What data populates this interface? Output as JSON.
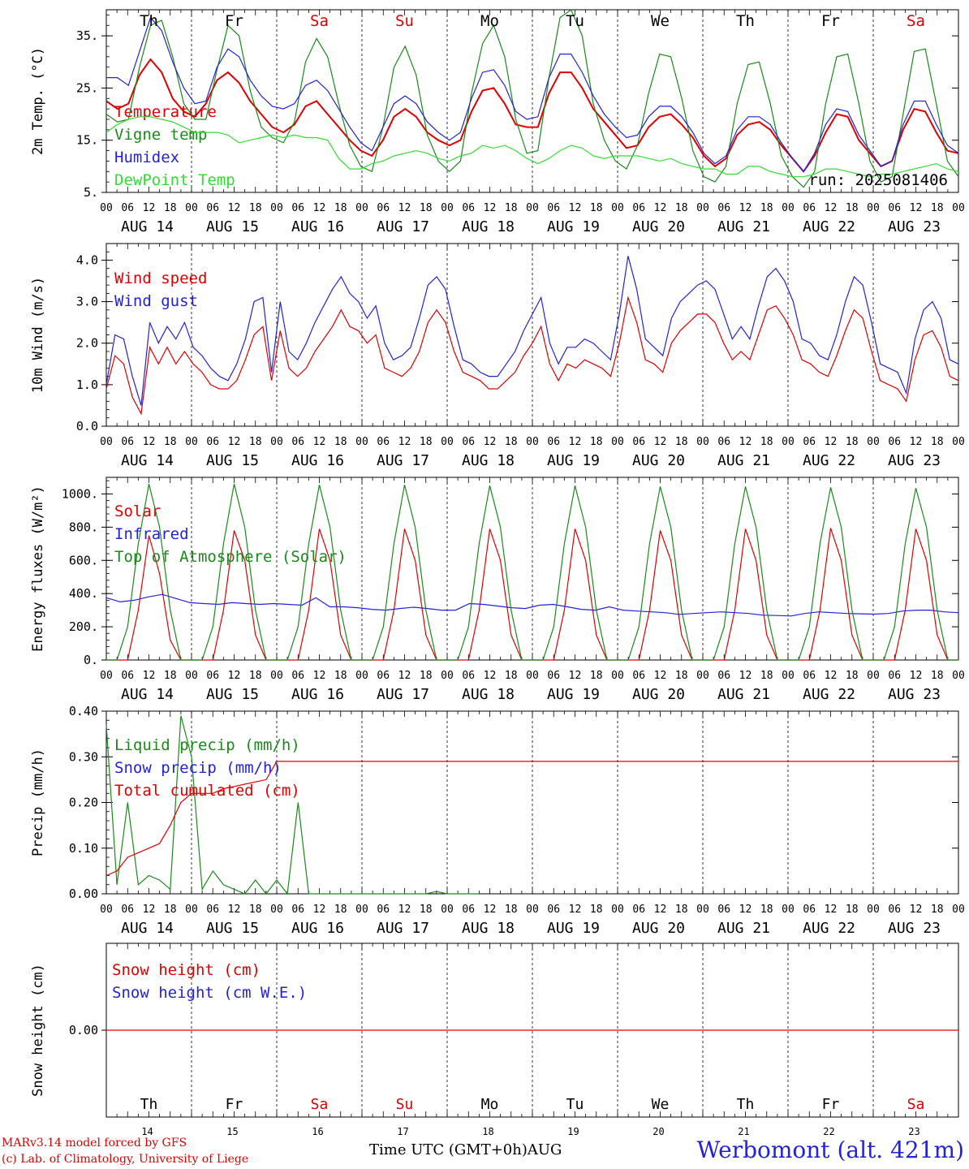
{
  "footer": {
    "credit_line1": "MARv3.14 model forced by GFS",
    "credit_line2": "(c) Lab. of Climatology, University of Liege",
    "xaxis_title": "Time UTC (GMT+0h)AUG",
    "station": "Werbomont (alt. 421m)"
  },
  "run_label": "run: 2025081406",
  "colors": {
    "red": "#e00000",
    "blue": "#2222dd",
    "green": "#1a8a1a",
    "lightgreen": "#33dd33",
    "weekend": "#e00000",
    "weekday": "#000000"
  },
  "days": [
    {
      "abbr": "Th",
      "date": "AUG 14",
      "num": "14",
      "weekend": false
    },
    {
      "abbr": "Fr",
      "date": "AUG 15",
      "num": "15",
      "weekend": false
    },
    {
      "abbr": "Sa",
      "date": "AUG 16",
      "num": "16",
      "weekend": true
    },
    {
      "abbr": "Su",
      "date": "AUG 17",
      "num": "17",
      "weekend": true
    },
    {
      "abbr": "Mo",
      "date": "AUG 18",
      "num": "18",
      "weekend": false
    },
    {
      "abbr": "Tu",
      "date": "AUG 19",
      "num": "19",
      "weekend": false
    },
    {
      "abbr": "We",
      "date": "AUG 20",
      "num": "20",
      "weekend": false
    },
    {
      "abbr": "Th",
      "date": "AUG 21",
      "num": "21",
      "weekend": false
    },
    {
      "abbr": "Fr",
      "date": "AUG 22",
      "num": "22",
      "weekend": false
    },
    {
      "abbr": "Sa",
      "date": "AUG 23",
      "num": "23",
      "weekend": true
    }
  ],
  "hour_ticks": [
    "00",
    "06",
    "12",
    "18"
  ],
  "chart_data": [
    {
      "type": "line",
      "ylabel": "2m Temp. (°C)",
      "ylim": [
        5,
        40
      ],
      "yticks": [
        "5.",
        "15.",
        "25.",
        "35."
      ],
      "ytick_values": [
        5,
        15,
        25,
        35
      ],
      "series": [
        {
          "name": "Temperature",
          "color": "#e00000",
          "values": [
            22.5,
            21,
            22,
            27.5,
            30.5,
            28,
            23,
            20.5,
            19.5,
            22,
            26.5,
            28,
            26,
            22.5,
            20,
            17.5,
            16.5,
            18,
            21.5,
            22.5,
            20,
            17.5,
            15,
            13,
            12,
            15,
            19.5,
            21,
            19.5,
            16.5,
            15,
            14,
            15,
            20.5,
            24.5,
            25,
            22,
            18,
            17.5,
            17.5,
            24,
            28,
            28,
            25,
            21,
            18.5,
            16,
            13.5,
            14,
            17.5,
            19.5,
            20,
            18,
            15.5,
            12,
            10,
            11.5,
            16,
            18,
            18.5,
            17,
            14,
            11.5,
            9,
            12,
            16.5,
            20,
            19.5,
            15,
            12.5,
            10,
            11,
            17,
            21,
            20.5,
            16.5,
            13,
            12.5
          ]
        },
        {
          "name": "Vigne temp",
          "color": "#1a8a1a",
          "values": [
            20,
            18.5,
            19,
            29,
            37,
            38,
            31,
            22,
            19,
            19,
            28.5,
            37,
            35,
            24.5,
            17.5,
            15.5,
            14.5,
            18.5,
            30,
            34.5,
            31,
            22,
            14,
            10,
            9,
            17.5,
            29,
            33,
            27.5,
            16,
            11,
            9,
            11,
            24,
            33.5,
            37,
            31,
            19,
            12.5,
            13,
            27,
            38.5,
            40,
            35,
            22,
            15,
            11,
            9.5,
            14,
            24,
            31.5,
            31,
            23,
            13,
            8,
            7,
            10,
            22,
            29.5,
            30,
            22,
            12,
            8,
            6,
            9,
            22,
            31,
            31.5,
            22,
            11,
            7,
            8,
            20,
            32,
            32.5,
            22,
            11,
            8
          ]
        },
        {
          "name": "Humidex",
          "color": "#2222dd",
          "values": [
            27,
            27,
            25.5,
            32,
            38.5,
            36,
            30,
            25,
            22,
            22.5,
            29,
            32.5,
            31,
            26.5,
            23.5,
            21.5,
            21,
            22,
            25.5,
            26.5,
            24.5,
            21,
            17.5,
            14.5,
            13,
            17.5,
            22,
            23.5,
            22,
            18.5,
            16.5,
            15,
            16.5,
            23,
            28,
            28.5,
            25.5,
            20.5,
            19,
            19.5,
            27,
            31.5,
            31.5,
            28,
            23.5,
            20,
            17.5,
            15.5,
            16,
            19.5,
            21.5,
            21.5,
            19.5,
            16.5,
            12.5,
            10.5,
            12,
            17,
            19.5,
            19.5,
            18,
            14.5,
            11.5,
            9,
            12.5,
            18,
            21,
            20.5,
            16,
            13,
            10,
            11,
            18,
            22.5,
            22.5,
            18,
            14,
            12.5
          ]
        },
        {
          "name": "DewPoint Temp",
          "color": "#33dd33",
          "values": [
            16.5,
            18,
            19,
            19.5,
            19.5,
            19,
            18.5,
            17.5,
            16.5,
            16.5,
            16.5,
            16,
            14.5,
            15,
            15.5,
            16,
            15.5,
            16,
            15.5,
            15.5,
            15,
            11.5,
            9.5,
            9.5,
            10.5,
            11,
            12,
            12.5,
            13,
            12.5,
            11.5,
            11,
            12,
            12.5,
            14,
            13.5,
            14,
            13,
            11.5,
            10.5,
            11.5,
            13,
            14,
            13.5,
            12,
            11.5,
            12,
            12,
            12,
            11.5,
            11,
            11.5,
            10.5,
            10,
            9.5,
            9.5,
            8.5,
            8.5,
            10,
            10,
            9,
            8.5,
            8,
            8,
            8.5,
            9.5,
            9.5,
            9,
            8.5,
            8,
            8.5,
            8.5,
            9,
            9.5,
            10,
            10.5,
            9.5,
            9
          ]
        }
      ]
    },
    {
      "type": "line",
      "ylabel": "10m Wind (m/s)",
      "ylim": [
        0,
        4.4
      ],
      "yticks": [
        "0.0",
        "1.0",
        "2.0",
        "3.0",
        "4.0"
      ],
      "ytick_values": [
        0,
        1,
        2,
        3,
        4
      ],
      "series": [
        {
          "name": "Wind speed",
          "color": "#e00000",
          "values": [
            0.9,
            1.7,
            1.5,
            0.7,
            0.3,
            1.9,
            1.5,
            1.9,
            1.5,
            1.8,
            1.5,
            1.3,
            1.0,
            0.9,
            0.9,
            1.1,
            1.6,
            2.2,
            2.4,
            1.1,
            2.3,
            1.4,
            1.2,
            1.4,
            1.8,
            2.1,
            2.4,
            2.8,
            2.4,
            2.3,
            2.0,
            2.2,
            1.4,
            1.3,
            1.2,
            1.4,
            1.8,
            2.5,
            2.8,
            2.5,
            1.8,
            1.3,
            1.2,
            1.1,
            0.9,
            0.9,
            1.1,
            1.3,
            1.7,
            2.0,
            2.4,
            1.5,
            1.1,
            1.5,
            1.4,
            1.6,
            1.5,
            1.4,
            1.2,
            2.0,
            3.1,
            2.5,
            1.6,
            1.5,
            1.3,
            2.0,
            2.3,
            2.5,
            2.7,
            2.7,
            2.5,
            2.0,
            1.6,
            1.8,
            1.6,
            2.2,
            2.8,
            2.9,
            2.6,
            2.2,
            1.6,
            1.5,
            1.3,
            1.2,
            1.7,
            2.3,
            2.8,
            2.6,
            1.8,
            1.1,
            1.0,
            0.9,
            0.6,
            1.6,
            2.2,
            2.3,
            1.9,
            1.2,
            1.1
          ]
        },
        {
          "name": "Wind gust",
          "color": "#2222dd",
          "values": [
            1.0,
            2.2,
            2.1,
            1.2,
            0.5,
            2.5,
            2.0,
            2.4,
            2.1,
            2.5,
            1.9,
            1.7,
            1.4,
            1.2,
            1.1,
            1.5,
            2.1,
            3.0,
            3.1,
            1.3,
            3.0,
            1.8,
            1.6,
            2.0,
            2.5,
            2.9,
            3.3,
            3.6,
            3.2,
            3.0,
            2.6,
            2.9,
            2.0,
            1.6,
            1.7,
            1.9,
            2.6,
            3.4,
            3.6,
            3.3,
            2.4,
            1.6,
            1.5,
            1.3,
            1.2,
            1.2,
            1.5,
            1.8,
            2.3,
            2.7,
            3.1,
            2.0,
            1.5,
            1.9,
            1.9,
            2.1,
            2.0,
            1.8,
            1.6,
            2.7,
            4.1,
            3.3,
            2.1,
            1.9,
            1.7,
            2.6,
            3.0,
            3.2,
            3.4,
            3.5,
            3.3,
            2.7,
            2.1,
            2.4,
            2.1,
            2.9,
            3.6,
            3.8,
            3.5,
            3.0,
            2.1,
            2.0,
            1.7,
            1.6,
            2.2,
            3.0,
            3.6,
            3.4,
            2.5,
            1.5,
            1.4,
            1.3,
            0.8,
            2.1,
            2.8,
            3.0,
            2.6,
            1.6,
            1.5
          ]
        }
      ]
    },
    {
      "type": "line",
      "ylabel": "Energy fluxes (W/m²)",
      "ylim": [
        0,
        1100
      ],
      "yticks": [
        "0.",
        "200.",
        "400.",
        "600.",
        "800.",
        "1000."
      ],
      "ytick_values": [
        0,
        200,
        400,
        600,
        800,
        1000
      ],
      "series": [
        {
          "name": "Solar",
          "color": "#e00000",
          "values": [
            0,
            0,
            0,
            300,
            750,
            520,
            120,
            0,
            0,
            0,
            0,
            300,
            780,
            600,
            150,
            0,
            0,
            0,
            0,
            300,
            790,
            600,
            150,
            0,
            0,
            0,
            0,
            300,
            790,
            600,
            150,
            0,
            0,
            0,
            0,
            300,
            790,
            600,
            150,
            0,
            0,
            0,
            0,
            300,
            790,
            600,
            150,
            0,
            0,
            0,
            0,
            300,
            780,
            600,
            150,
            0,
            0,
            0,
            0,
            300,
            790,
            600,
            150,
            0,
            0,
            0,
            0,
            300,
            795,
            600,
            150,
            0,
            0,
            0,
            0,
            300,
            790,
            600,
            150,
            0,
            0
          ]
        },
        {
          "name": "Infrared",
          "color": "#2222dd",
          "values": [
            375,
            350,
            360,
            380,
            395,
            370,
            345,
            340,
            335,
            345,
            340,
            335,
            340,
            335,
            330,
            375,
            320,
            320,
            315,
            305,
            300,
            310,
            318,
            310,
            300,
            300,
            340,
            335,
            325,
            315,
            310,
            330,
            335,
            320,
            305,
            300,
            320,
            300,
            295,
            290,
            285,
            275,
            280,
            285,
            290,
            285,
            280,
            270,
            268,
            265,
            280,
            290,
            285,
            280,
            278,
            276,
            280,
            295,
            300,
            300,
            290,
            285
          ]
        },
        {
          "name": "Top of Atmosphere (Solar)",
          "color": "#1a8a1a",
          "values": [
            0,
            0,
            200,
            700,
            1060,
            800,
            300,
            0,
            0,
            0,
            200,
            700,
            1060,
            800,
            300,
            0,
            0,
            0,
            200,
            700,
            1055,
            800,
            300,
            0,
            0,
            0,
            200,
            700,
            1055,
            800,
            300,
            0,
            0,
            0,
            200,
            700,
            1050,
            800,
            300,
            0,
            0,
            0,
            200,
            700,
            1050,
            800,
            300,
            0,
            0,
            0,
            200,
            700,
            1045,
            800,
            300,
            0,
            0,
            0,
            200,
            700,
            1045,
            800,
            300,
            0,
            0,
            0,
            200,
            700,
            1040,
            800,
            300,
            0,
            0,
            0,
            200,
            700,
            1035,
            800,
            300,
            0,
            0
          ]
        }
      ]
    },
    {
      "type": "line",
      "ylabel": "Precip (mm/h)",
      "ylim": [
        0,
        0.4
      ],
      "yticks": [
        "0.00",
        "0.10",
        "0.20",
        "0.30",
        "0.40"
      ],
      "ytick_values": [
        0,
        0.1,
        0.2,
        0.3,
        0.4
      ],
      "series": [
        {
          "name": "Liquid precip (mm/h)",
          "color": "#1a8a1a",
          "values": [
            0.37,
            0.02,
            0.2,
            0.02,
            0.04,
            0.03,
            0.01,
            0.39,
            0.3,
            0.01,
            0.05,
            0.02,
            0.01,
            0.0,
            0.03,
            0.0,
            0.03,
            0.0,
            0.2,
            0.0,
            0.0,
            0.0,
            0.0,
            0.0,
            0.0,
            0.0,
            0.0,
            0.0,
            0.0,
            0.0,
            0.0,
            0.005,
            0.0,
            0.0,
            0.0,
            0.0
          ]
        },
        {
          "name": "Snow precip (mm/h)",
          "color": "#2222dd",
          "values": []
        },
        {
          "name": "Total cumulated (cm)",
          "color": "#e00000",
          "values": [
            0.04,
            0.05,
            0.08,
            0.09,
            0.1,
            0.11,
            0.15,
            0.2,
            0.22,
            0.22,
            0.22,
            0.23,
            0.235,
            0.24,
            0.245,
            0.25,
            0.29,
            0.29,
            0.29,
            0.29,
            0.29,
            0.29,
            0.29,
            0.29,
            0.29,
            0.29,
            0.29,
            0.29,
            0.29,
            0.29,
            0.29,
            0.29,
            0.29,
            0.29,
            0.29,
            0.29,
            0.29,
            0.29,
            0.29,
            0.29
          ]
        }
      ]
    },
    {
      "type": "line",
      "ylabel": "Snow height (cm)",
      "ylim": [
        -1,
        1
      ],
      "yticks": [
        "0.00"
      ],
      "ytick_values": [
        0
      ],
      "series": [
        {
          "name": "Snow height (cm)",
          "color": "#e00000",
          "values": [
            0,
            0
          ]
        },
        {
          "name": "Snow height (cm W.E.)",
          "color": "#2222dd",
          "values": []
        }
      ]
    }
  ]
}
